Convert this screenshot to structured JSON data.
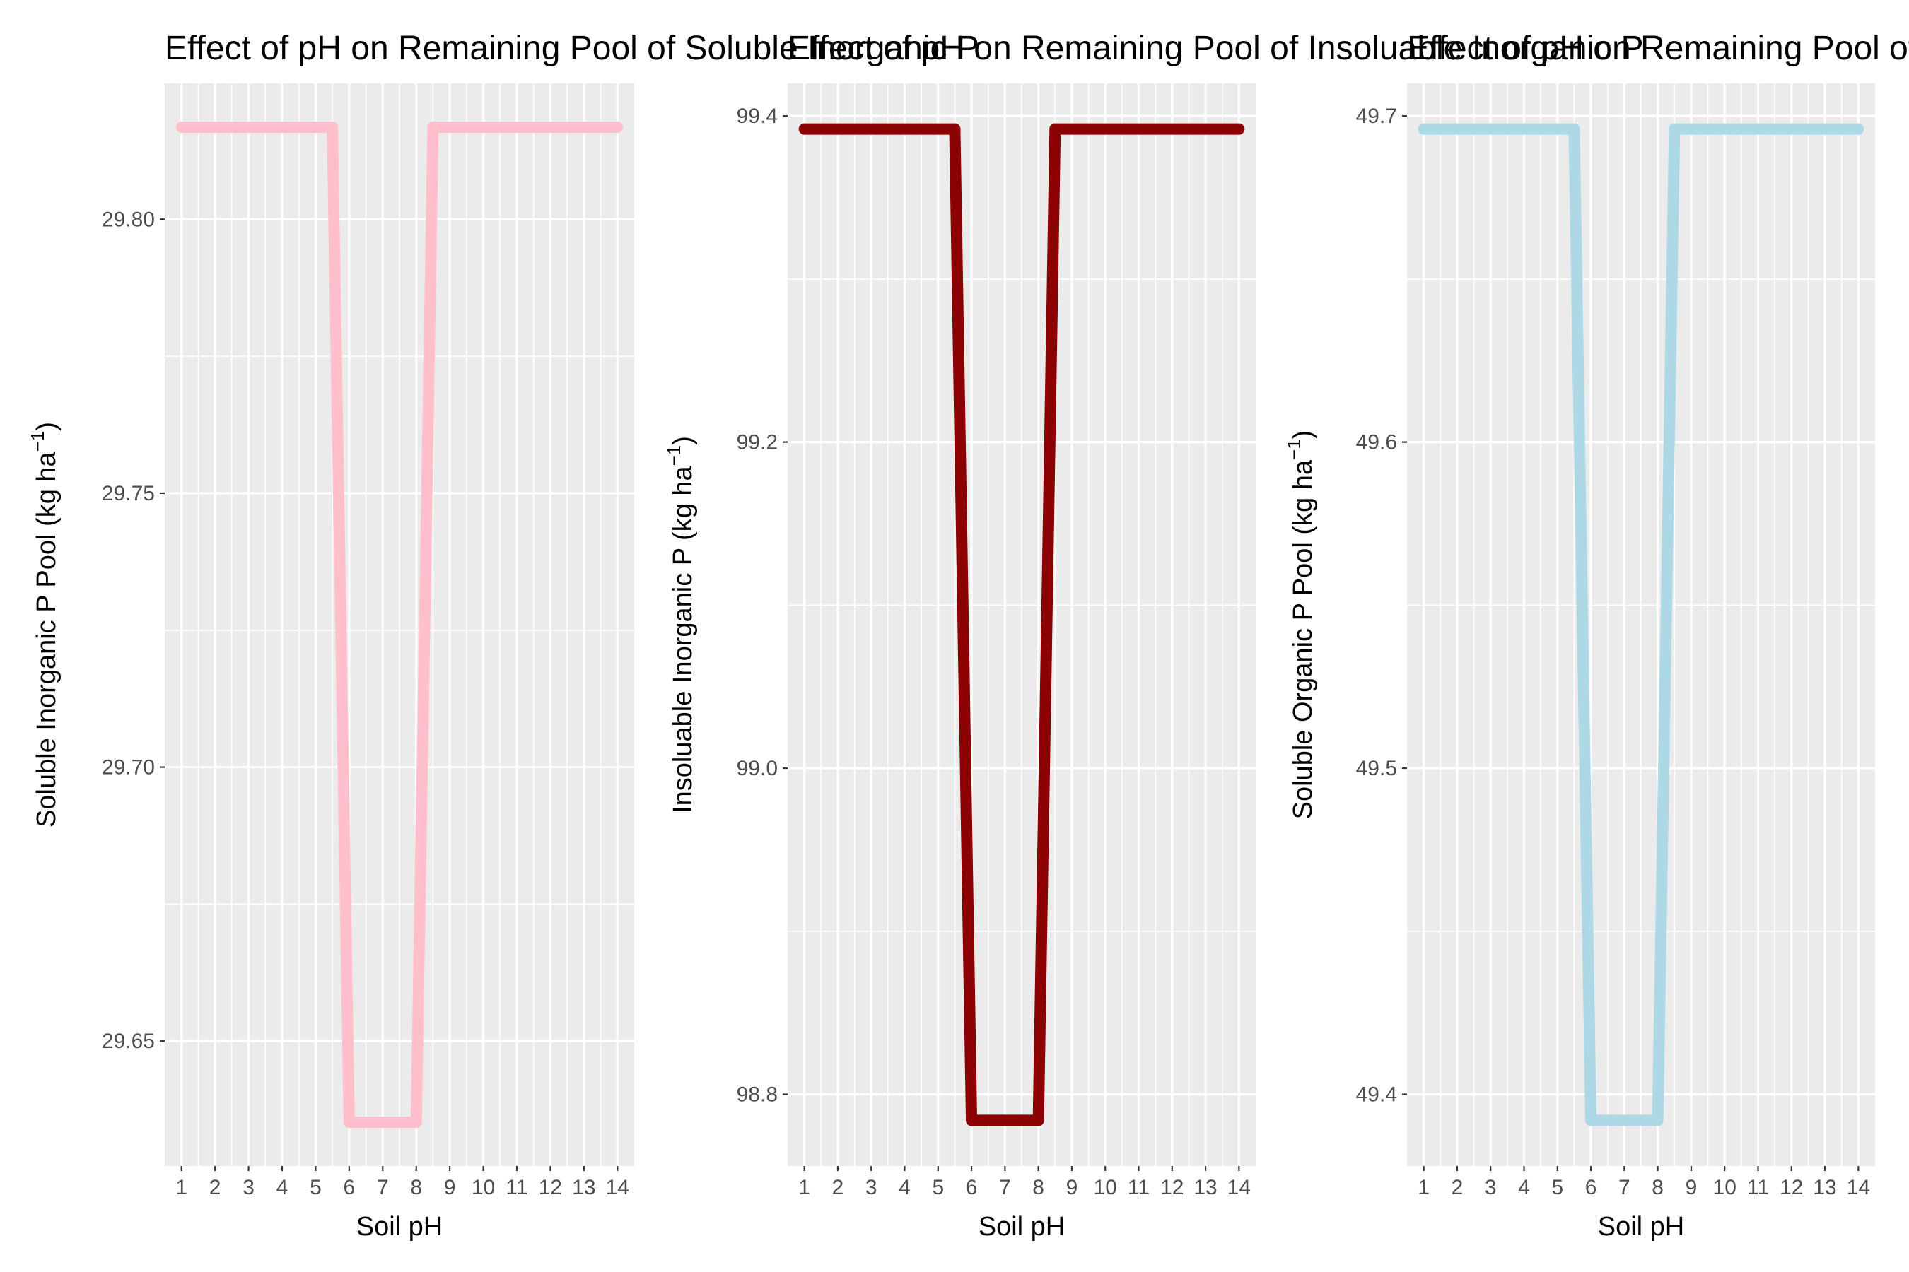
{
  "chart_data": [
    {
      "type": "line",
      "title": "Effect of pH on Remaining Pool of Soluble Inorganic P",
      "xlabel": "Soil pH",
      "ylabel": "Soluble Inorganic P Pool (kg ha",
      "ylabel_superscript": "−1",
      "ylabel_close": ")",
      "x": [
        1,
        2,
        3,
        4,
        5,
        6,
        7,
        8,
        9,
        10,
        11,
        12,
        13,
        14
      ],
      "x_ticks": [
        "1",
        "2",
        "3",
        "4",
        "5",
        "6",
        "7",
        "8",
        "9",
        "10",
        "11",
        "12",
        "13",
        "14"
      ],
      "xlim": [
        0.5,
        14.5
      ],
      "series": [
        {
          "color": "#FFC0CB",
          "points": [
            [
              1,
              29.8168
            ],
            [
              5.5,
              29.8168
            ],
            [
              6,
              29.6352
            ],
            [
              8,
              29.6352
            ],
            [
              8.5,
              29.8168
            ],
            [
              14,
              29.8168
            ]
          ]
        }
      ],
      "ylim": [
        29.6272,
        29.8248
      ],
      "y_ticks": [
        29.65,
        29.7,
        29.75,
        29.8
      ],
      "y_tick_labels": [
        "29.65",
        "29.70",
        "29.75",
        "29.80"
      ],
      "grid": true
    },
    {
      "type": "line",
      "title": "Effect of pH on Remaining Pool of Insoluable Inorganic P",
      "xlabel": "Soil pH",
      "ylabel": "Insoluable Inorganic P (kg ha",
      "ylabel_superscript": "−1",
      "ylabel_close": ")",
      "x": [
        1,
        2,
        3,
        4,
        5,
        6,
        7,
        8,
        9,
        10,
        11,
        12,
        13,
        14
      ],
      "x_ticks": [
        "1",
        "2",
        "3",
        "4",
        "5",
        "6",
        "7",
        "8",
        "9",
        "10",
        "11",
        "12",
        "13",
        "14"
      ],
      "xlim": [
        0.5,
        14.5
      ],
      "series": [
        {
          "color": "#8B0000",
          "points": [
            [
              1,
              99.392
            ],
            [
              5.5,
              99.392
            ],
            [
              6,
              98.784
            ],
            [
              8,
              98.784
            ],
            [
              8.5,
              99.392
            ],
            [
              14,
              99.392
            ]
          ]
        }
      ],
      "ylim": [
        98.756,
        99.42
      ],
      "y_ticks": [
        98.8,
        99.0,
        99.2,
        99.4
      ],
      "y_tick_labels": [
        "98.8",
        "99.0",
        "99.2",
        "99.4"
      ],
      "grid": true
    },
    {
      "type": "line",
      "title": "Effect of pH on Remaining Pool of Soluble Organic P",
      "xlabel": "Soil pH",
      "ylabel": "Soluble Organic P Pool (kg ha",
      "ylabel_superscript": "−1",
      "ylabel_close": ")",
      "x": [
        1,
        2,
        3,
        4,
        5,
        6,
        7,
        8,
        9,
        10,
        11,
        12,
        13,
        14
      ],
      "x_ticks": [
        "1",
        "2",
        "3",
        "4",
        "5",
        "6",
        "7",
        "8",
        "9",
        "10",
        "11",
        "12",
        "13",
        "14"
      ],
      "xlim": [
        0.5,
        14.5
      ],
      "series": [
        {
          "color": "#ADD8E6",
          "points": [
            [
              1,
              49.696
            ],
            [
              5.5,
              49.696
            ],
            [
              6,
              49.392
            ],
            [
              8,
              49.392
            ],
            [
              8.5,
              49.696
            ],
            [
              14,
              49.696
            ]
          ]
        }
      ],
      "ylim": [
        49.378,
        49.71
      ],
      "y_ticks": [
        49.4,
        49.5,
        49.6,
        49.7
      ],
      "y_tick_labels": [
        "49.4",
        "49.5",
        "49.6",
        "49.7"
      ],
      "grid": true
    }
  ]
}
